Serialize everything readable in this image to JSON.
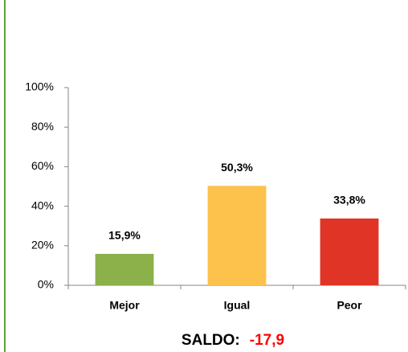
{
  "chart_data": {
    "type": "bar",
    "categories": [
      "Mejor",
      "Igual",
      "Peor"
    ],
    "values": [
      15.9,
      50.3,
      33.8
    ],
    "value_labels": [
      "15,9%",
      "50,3%",
      "33,8%"
    ],
    "colors": [
      "#8cb04a",
      "#fdc24b",
      "#e03427"
    ],
    "ylim": [
      0,
      100
    ],
    "yticks": [
      {
        "value": 0,
        "label": "0%"
      },
      {
        "value": 20,
        "label": "20%"
      },
      {
        "value": 40,
        "label": "40%"
      },
      {
        "value": 60,
        "label": "60%"
      },
      {
        "value": 80,
        "label": "80%"
      },
      {
        "value": 100,
        "label": "100%"
      }
    ],
    "grid": false,
    "annotation": {
      "label": "SALDO:",
      "value": "-17,9",
      "value_color": "#ff0000"
    }
  }
}
